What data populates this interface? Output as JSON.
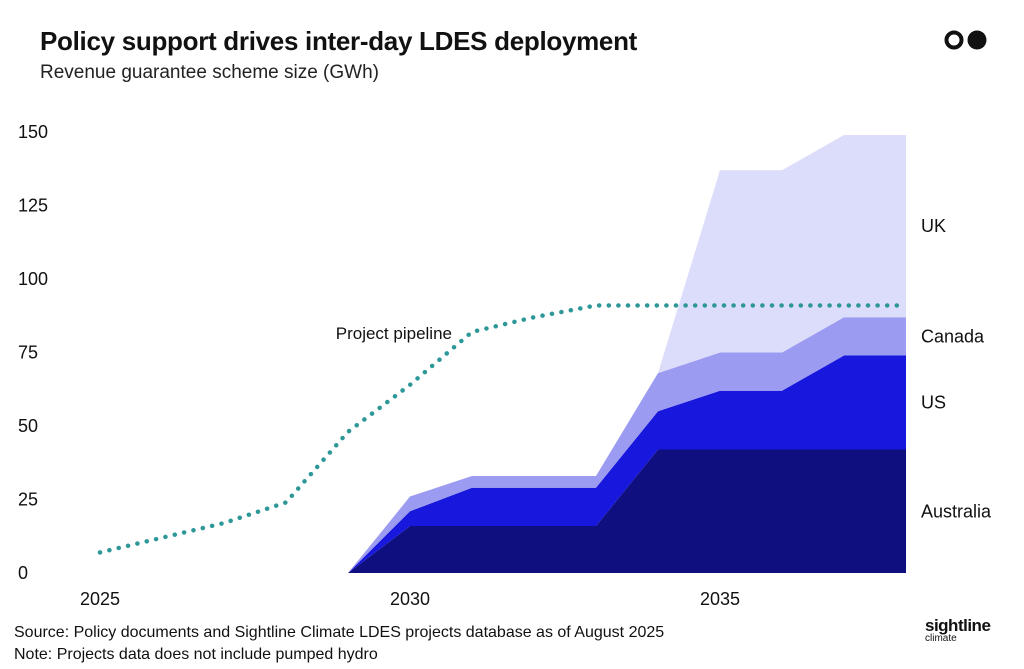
{
  "header": {
    "title": "Policy support drives inter-day LDES deployment",
    "subtitle": "Revenue guarantee scheme size (GWh)"
  },
  "footer": {
    "source": "Source: Policy documents and Sightline Climate LDES projects database as of August 2025",
    "note": "Note: Projects data does not include pumped hydro"
  },
  "brand": {
    "name": "sightline",
    "tagline": "climate"
  },
  "chart_data": {
    "type": "area",
    "stacked": true,
    "x": [
      2029,
      2030,
      2031,
      2032,
      2033,
      2034,
      2035,
      2036,
      2037,
      2038
    ],
    "xticks": [
      2025,
      2030,
      2035
    ],
    "xlim": [
      2025,
      2038
    ],
    "yticks": [
      0,
      25,
      50,
      75,
      100,
      125,
      150
    ],
    "ylim": [
      0,
      150
    ],
    "series": [
      {
        "name": "Australia",
        "color": "#0f0f80",
        "values": [
          0,
          16,
          16,
          16,
          16,
          42,
          42,
          42,
          42,
          42
        ]
      },
      {
        "name": "US",
        "color": "#1717dd",
        "values": [
          0,
          5,
          13,
          13,
          13,
          13,
          20,
          20,
          32,
          32
        ]
      },
      {
        "name": "Canada",
        "color": "#9b9bf2",
        "values": [
          0,
          5,
          4,
          4,
          4,
          13,
          13,
          13,
          13,
          13
        ]
      },
      {
        "name": "UK",
        "color": "#dcdcfb",
        "values": [
          0,
          0,
          0,
          0,
          0,
          0,
          62,
          62,
          62,
          62
        ]
      }
    ],
    "pipeline": {
      "label": "Project pipeline",
      "color": "#2e9898",
      "x": [
        2025,
        2026,
        2027,
        2028,
        2029,
        2030,
        2031,
        2032,
        2033,
        2034,
        2035,
        2036,
        2037,
        2038
      ],
      "values": [
        7,
        12,
        17,
        24,
        48,
        64,
        82,
        87,
        91,
        91,
        91,
        91,
        91,
        91
      ]
    }
  }
}
